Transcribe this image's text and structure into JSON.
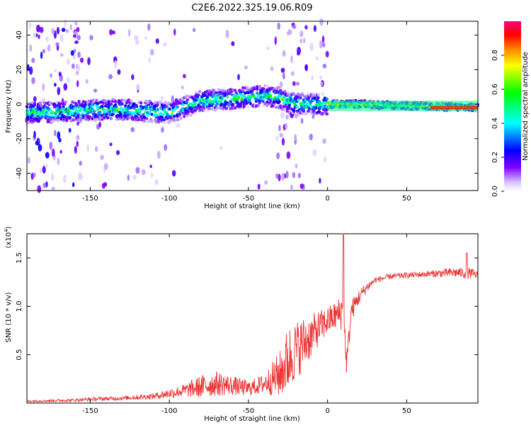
{
  "title": "C2E6.2022.325.19.06.R09",
  "chart_data": [
    {
      "type": "heatmap",
      "xlabel": "Height of straight line (km)",
      "ylabel": "Frequency (Hz)",
      "xlim": [
        -190,
        95
      ],
      "ylim": [
        -50,
        48
      ],
      "xticks": [
        -150,
        -100,
        -50,
        0,
        50
      ],
      "yticks": [
        -40,
        -20,
        0,
        20,
        40
      ],
      "colorbar": {
        "label": "Normalized spectral amplitude",
        "range": [
          0,
          1
        ],
        "ticks": [
          "0.0",
          "0.2",
          "0.4",
          "0.6",
          "0.8"
        ],
        "colormap": "rainbow white-to-magenta",
        "colors": [
          "#ffffff",
          "#d8c8ff",
          "#8000ff",
          "#0000ff",
          "#00ffff",
          "#00ff00",
          "#ffff00",
          "#ff8000",
          "#ff0000",
          "#ff0080"
        ]
      },
      "centerline": [
        {
          "x": -190,
          "y": -5
        },
        {
          "x": -160,
          "y": -4
        },
        {
          "x": -130,
          "y": -3
        },
        {
          "x": -100,
          "y": -5
        },
        {
          "x": -80,
          "y": 2
        },
        {
          "x": -60,
          "y": 3
        },
        {
          "x": -40,
          "y": 5
        },
        {
          "x": -32,
          "y": 4
        },
        {
          "x": -20,
          "y": 0
        },
        {
          "x": 0,
          "y": 0
        },
        {
          "x": 20,
          "y": 0
        },
        {
          "x": 50,
          "y": -1
        },
        {
          "x": 95,
          "y": -2
        }
      ]
    },
    {
      "type": "line",
      "xlabel": "Height of straight line (km)",
      "ylabel": "SNR (10 * v/v)",
      "yexponent": "(x10",
      "yexponent_power": "4",
      "yexponent_close": ")",
      "xlim": [
        -190,
        95
      ],
      "ylim": [
        0,
        1.75
      ],
      "xticks": [
        -150,
        -100,
        -50,
        0,
        50
      ],
      "yticks": [
        "0.5",
        "1.0",
        "1.5"
      ],
      "series": [
        {
          "color": "#ee3333",
          "x": [
            -190,
            -160,
            -150,
            -130,
            -110,
            -100,
            -90,
            -80,
            -70,
            -60,
            -50,
            -40,
            -30,
            -25,
            -20,
            -15,
            -10,
            -5,
            0,
            5,
            10,
            12,
            15,
            20,
            25,
            30,
            40,
            50,
            60,
            70,
            80,
            90,
            95
          ],
          "base": [
            0.02,
            0.03,
            0.04,
            0.05,
            0.07,
            0.1,
            0.13,
            0.17,
            0.2,
            0.18,
            0.15,
            0.2,
            0.3,
            0.45,
            0.55,
            0.62,
            0.7,
            0.78,
            0.85,
            0.9,
            0.95,
            0.4,
            0.95,
            1.1,
            1.2,
            1.27,
            1.31,
            1.32,
            1.33,
            1.34,
            1.35,
            1.34,
            1.32
          ],
          "noise": [
            0.01,
            0.015,
            0.02,
            0.02,
            0.03,
            0.05,
            0.07,
            0.12,
            0.13,
            0.1,
            0.08,
            0.1,
            0.25,
            0.35,
            0.3,
            0.28,
            0.22,
            0.18,
            0.15,
            0.15,
            0.2,
            0.1,
            0.12,
            0.08,
            0.05,
            0.03,
            0.03,
            0.03,
            0.03,
            0.04,
            0.05,
            0.06,
            0.04
          ]
        }
      ]
    }
  ]
}
